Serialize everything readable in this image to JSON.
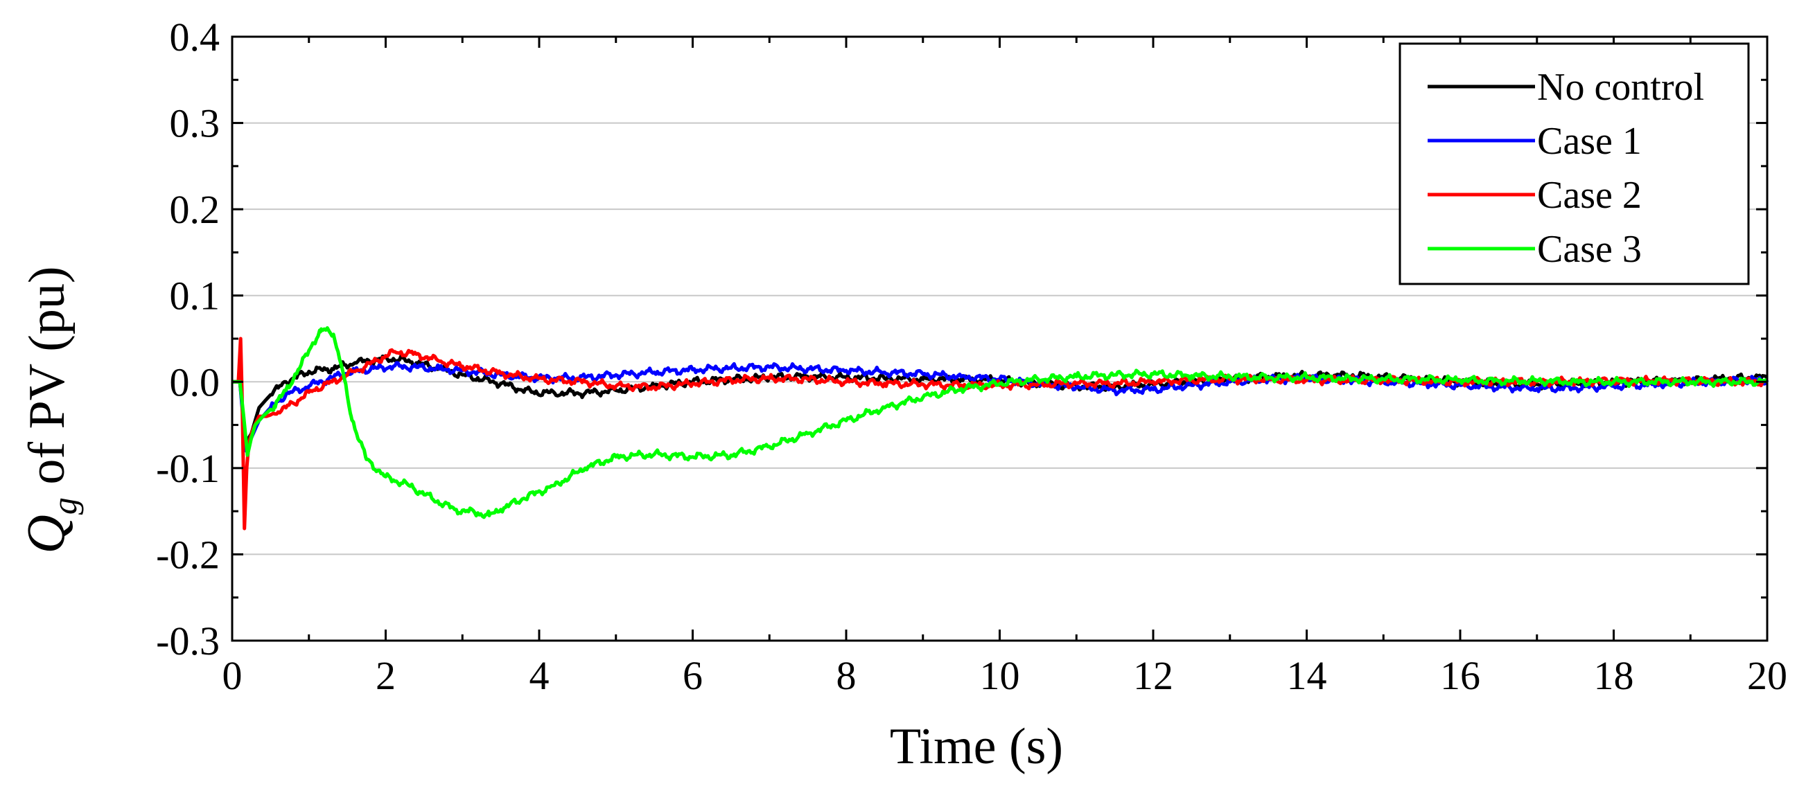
{
  "chart_data": {
    "type": "line",
    "title": "",
    "xlabel": "Time (s)",
    "ylabel": {
      "symbol": "Q",
      "subscript": "g",
      "rest": " of PV  (pu)"
    },
    "xlim": [
      0,
      20
    ],
    "ylim": [
      -0.3,
      0.4
    ],
    "xticks": [
      0,
      2,
      4,
      6,
      8,
      10,
      12,
      14,
      16,
      18,
      20
    ],
    "xtick_labels": [
      "0",
      "2",
      "4",
      "6",
      "8",
      "10",
      "12",
      "14",
      "16",
      "18",
      "20"
    ],
    "yticks": [
      -0.3,
      -0.2,
      -0.1,
      0.0,
      0.1,
      0.2,
      0.3,
      0.4
    ],
    "ytick_labels": [
      "-0.3",
      "-0.2",
      "-0.1",
      "0.0",
      "0.1",
      "0.2",
      "0.3",
      "0.4"
    ],
    "grid": "horizontal",
    "legend_position": "top-right",
    "series": [
      {
        "name": "No control",
        "color": "#000000",
        "x": [
          0,
          0.1,
          0.18,
          0.25,
          0.35,
          0.5,
          0.7,
          1.0,
          1.3,
          1.6,
          1.9,
          2.1,
          2.4,
          2.7,
          3.0,
          3.5,
          3.9,
          4.2,
          4.6,
          5.0,
          5.5,
          6.0,
          6.5,
          7.0,
          7.5,
          8.0,
          8.5,
          9.0,
          9.5,
          10.0,
          10.5,
          11.0,
          11.5,
          12.0,
          12.5,
          13.0,
          13.5,
          14.0,
          14.5,
          15.0,
          15.5,
          16.0,
          16.5,
          17.0,
          17.5,
          18.0,
          18.5,
          19.0,
          19.5,
          20.0
        ],
        "y": [
          0.0,
          0.0,
          -0.07,
          -0.06,
          -0.03,
          -0.015,
          0.0,
          0.012,
          0.015,
          0.022,
          0.026,
          0.027,
          0.022,
          0.015,
          0.008,
          -0.002,
          -0.012,
          -0.013,
          -0.013,
          -0.01,
          -0.005,
          0.0,
          0.003,
          0.005,
          0.006,
          0.005,
          0.004,
          0.003,
          0.003,
          0.002,
          -0.002,
          -0.005,
          -0.006,
          -0.003,
          0.0,
          0.003,
          0.006,
          0.007,
          0.008,
          0.005,
          0.003,
          0.0,
          -0.002,
          -0.003,
          -0.002,
          0.0,
          0.0,
          0.001,
          0.004,
          0.005
        ]
      },
      {
        "name": "Case 1",
        "color": "#0000ff",
        "x": [
          0,
          0.1,
          0.18,
          0.25,
          0.35,
          0.5,
          0.7,
          1.0,
          1.3,
          1.6,
          1.9,
          2.1,
          2.4,
          2.7,
          3.0,
          3.5,
          3.9,
          4.2,
          4.6,
          5.0,
          5.5,
          6.0,
          6.5,
          7.0,
          7.5,
          8.0,
          8.5,
          9.0,
          9.5,
          10.0,
          10.5,
          11.0,
          11.5,
          12.0,
          12.5,
          13.0,
          13.5,
          14.0,
          14.5,
          15.0,
          15.5,
          16.0,
          16.5,
          17.0,
          17.5,
          18.0,
          18.5,
          19.0,
          19.5,
          20.0
        ],
        "y": [
          0.0,
          0.0,
          -0.08,
          -0.065,
          -0.045,
          -0.03,
          -0.015,
          -0.005,
          0.005,
          0.012,
          0.016,
          0.018,
          0.017,
          0.015,
          0.013,
          0.008,
          0.005,
          0.004,
          0.005,
          0.008,
          0.011,
          0.014,
          0.016,
          0.017,
          0.015,
          0.013,
          0.011,
          0.009,
          0.006,
          0.003,
          -0.002,
          -0.006,
          -0.01,
          -0.009,
          -0.004,
          0.0,
          0.003,
          0.004,
          0.002,
          0.0,
          -0.002,
          -0.004,
          -0.006,
          -0.008,
          -0.007,
          -0.005,
          -0.003,
          -0.001,
          0.001,
          0.002
        ]
      },
      {
        "name": "Case 2",
        "color": "#ff0000",
        "x": [
          0,
          0.08,
          0.11,
          0.13,
          0.16,
          0.19,
          0.22,
          0.27,
          0.35,
          0.45,
          0.6,
          0.8,
          1.0,
          1.3,
          1.6,
          1.9,
          2.1,
          2.4,
          2.7,
          3.0,
          3.5,
          3.9,
          4.2,
          4.6,
          5.0,
          5.5,
          6.0,
          6.5,
          7.0,
          7.5,
          8.0,
          8.5,
          9.0,
          9.5,
          10.0,
          10.5,
          11.0,
          11.5,
          12.0,
          12.5,
          13.0,
          13.5,
          14.0,
          14.5,
          15.0,
          15.5,
          16.0,
          16.5,
          17.0,
          17.5,
          18.0,
          18.5,
          19.0,
          19.5,
          20.0
        ],
        "y": [
          0.0,
          0.0,
          0.05,
          -0.02,
          -0.17,
          -0.1,
          -0.07,
          -0.055,
          -0.04,
          -0.04,
          -0.035,
          -0.025,
          -0.012,
          0.0,
          0.012,
          0.025,
          0.035,
          0.032,
          0.024,
          0.018,
          0.01,
          0.004,
          0.002,
          0.0,
          -0.005,
          -0.006,
          -0.002,
          0.002,
          0.004,
          0.003,
          0.0,
          -0.002,
          -0.003,
          -0.004,
          -0.004,
          -0.003,
          -0.002,
          -0.002,
          0.0,
          0.002,
          0.003,
          0.003,
          0.002,
          0.002,
          0.002,
          0.001,
          0.0,
          0.0,
          0.0,
          0.0,
          0.001,
          0.001,
          0.001,
          0.0,
          0.0
        ]
      },
      {
        "name": "Case 3",
        "color": "#00ff00",
        "x": [
          0,
          0.1,
          0.15,
          0.2,
          0.25,
          0.3,
          0.4,
          0.55,
          0.7,
          0.9,
          1.05,
          1.15,
          1.22,
          1.32,
          1.42,
          1.55,
          1.75,
          2.0,
          2.3,
          2.6,
          2.9,
          3.2,
          3.35,
          3.5,
          3.8,
          4.2,
          4.6,
          5.0,
          5.5,
          6.0,
          6.5,
          7.0,
          7.5,
          8.0,
          8.5,
          9.0,
          9.5,
          10.0,
          10.5,
          11.0,
          11.5,
          12.0,
          12.5,
          13.0,
          13.5,
          14.0,
          14.5,
          15.0,
          15.5,
          16.0,
          16.5,
          17.0,
          17.5,
          18.0,
          18.5,
          19.0,
          19.5,
          20.0
        ],
        "y": [
          0.0,
          0.0,
          -0.04,
          -0.085,
          -0.065,
          -0.05,
          -0.04,
          -0.028,
          -0.01,
          0.02,
          0.045,
          0.058,
          0.06,
          0.055,
          0.02,
          -0.04,
          -0.09,
          -0.11,
          -0.12,
          -0.135,
          -0.148,
          -0.152,
          -0.155,
          -0.148,
          -0.135,
          -0.12,
          -0.1,
          -0.087,
          -0.084,
          -0.087,
          -0.085,
          -0.075,
          -0.06,
          -0.045,
          -0.03,
          -0.018,
          -0.008,
          -0.002,
          0.003,
          0.006,
          0.008,
          0.009,
          0.007,
          0.006,
          0.005,
          0.005,
          0.004,
          0.003,
          0.003,
          0.002,
          0.001,
          0.001,
          0.0,
          0.0,
          0.0,
          0.0,
          0.0,
          0.0
        ]
      }
    ]
  }
}
